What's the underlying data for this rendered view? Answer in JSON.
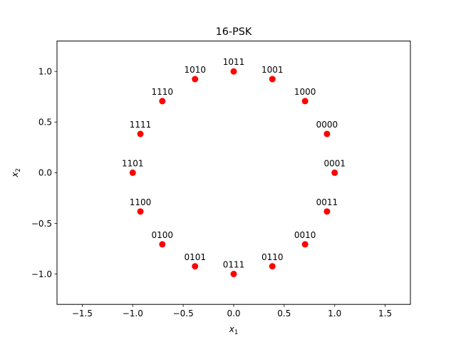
{
  "chart_data": {
    "type": "scatter",
    "title": "16-PSK",
    "xlabel_base": "x",
    "xlabel_sub": "1",
    "ylabel_base": "x",
    "ylabel_sub": "2",
    "xlim": [
      -1.75,
      1.75
    ],
    "ylim": [
      -1.3,
      1.3
    ],
    "xticks": [
      -1.5,
      -1.0,
      -0.5,
      0.0,
      0.5,
      1.0,
      1.5
    ],
    "xtick_labels": [
      "−1.5",
      "−1.0",
      "−0.5",
      "0.0",
      "0.5",
      "1.0",
      "1.5"
    ],
    "yticks": [
      -1.0,
      -0.5,
      0.0,
      0.5,
      1.0
    ],
    "ytick_labels": [
      "−1.0",
      "−0.5",
      "0.0",
      "0.5",
      "1.0"
    ],
    "grid": false,
    "marker_color": "#ff0000",
    "points": [
      {
        "label": "0001",
        "x": 1.0,
        "y": 0.0
      },
      {
        "label": "0000",
        "x": 0.924,
        "y": 0.383
      },
      {
        "label": "1000",
        "x": 0.707,
        "y": 0.707
      },
      {
        "label": "1001",
        "x": 0.383,
        "y": 0.924
      },
      {
        "label": "1011",
        "x": 0.0,
        "y": 1.0
      },
      {
        "label": "1010",
        "x": -0.383,
        "y": 0.924
      },
      {
        "label": "1110",
        "x": -0.707,
        "y": 0.707
      },
      {
        "label": "1111",
        "x": -0.924,
        "y": 0.383
      },
      {
        "label": "1101",
        "x": -1.0,
        "y": 0.0
      },
      {
        "label": "1100",
        "x": -0.924,
        "y": -0.383
      },
      {
        "label": "0100",
        "x": -0.707,
        "y": -0.707
      },
      {
        "label": "0101",
        "x": -0.383,
        "y": -0.924
      },
      {
        "label": "0111",
        "x": 0.0,
        "y": -1.0
      },
      {
        "label": "0110",
        "x": 0.383,
        "y": -0.924
      },
      {
        "label": "0010",
        "x": 0.707,
        "y": -0.707
      },
      {
        "label": "0011",
        "x": 0.924,
        "y": -0.383
      }
    ]
  }
}
